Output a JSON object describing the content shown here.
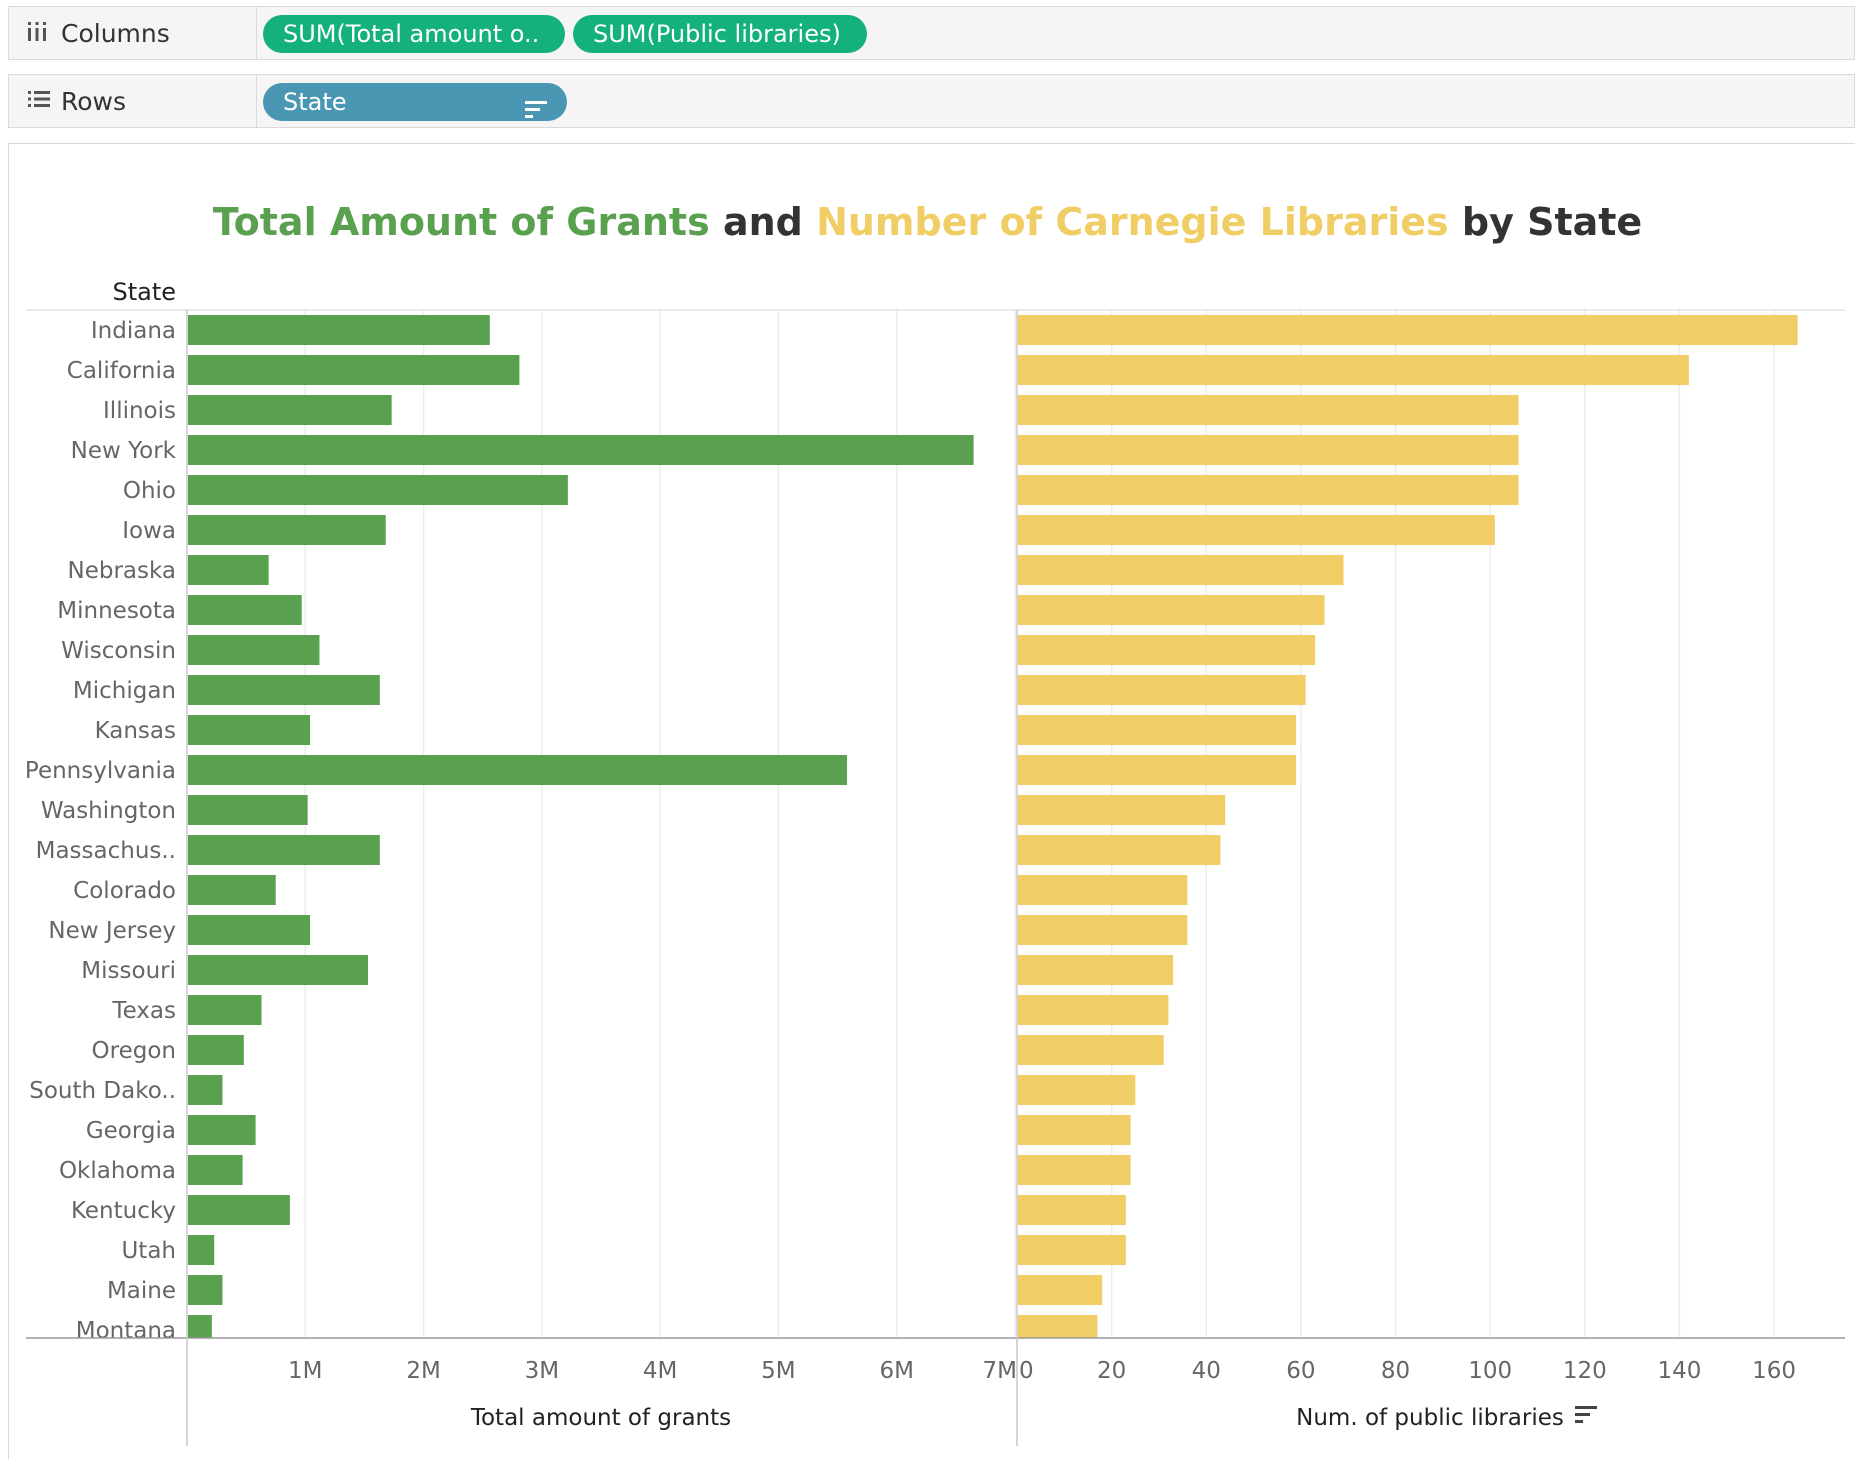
{
  "shelves": {
    "columns": {
      "label": "Columns",
      "icon": "columns-icon",
      "pills": [
        "SUM(Total amount o..",
        "SUM(Public libraries)"
      ]
    },
    "rows": {
      "label": "Rows",
      "icon": "rows-icon",
      "pills": [
        "State"
      ]
    }
  },
  "colors": {
    "grants": "#59a14f",
    "libraries": "#f0ce65",
    "pill_measure": "#14b07e",
    "pill_dimension": "#4a97b4",
    "title_dark": "#333333"
  },
  "title": {
    "part1": "Total Amount of Grants",
    "part2": " and ",
    "part3": "Number of Carnegie Libraries",
    "part4": " by State"
  },
  "chart_data": {
    "type": "bar",
    "orientation": "horizontal",
    "row_header": "State",
    "categories": [
      "Indiana",
      "California",
      "Illinois",
      "New York",
      "Ohio",
      "Iowa",
      "Nebraska",
      "Minnesota",
      "Wisconsin",
      "Michigan",
      "Kansas",
      "Pennsylvania",
      "Washington",
      "Massachus..",
      "Colorado",
      "New Jersey",
      "Missouri",
      "Texas",
      "Oregon",
      "South Dako..",
      "Georgia",
      "Oklahoma",
      "Kentucky",
      "Utah",
      "Maine",
      "Montana"
    ],
    "series": [
      {
        "name": "Total amount of grants",
        "values": [
          2560000,
          2810000,
          1730000,
          6650000,
          3220000,
          1680000,
          690000,
          970000,
          1120000,
          1630000,
          1040000,
          5580000,
          1020000,
          1630000,
          750000,
          1040000,
          1530000,
          630000,
          480000,
          300000,
          580000,
          470000,
          870000,
          230000,
          300000,
          210000
        ],
        "xlim": [
          0,
          7000000
        ],
        "ticks": [
          0,
          1000000,
          2000000,
          3000000,
          4000000,
          5000000,
          6000000,
          7000000
        ],
        "tick_labels": [
          "",
          "1M",
          "2M",
          "3M",
          "4M",
          "5M",
          "6M",
          "7M"
        ],
        "xlabel": "Total amount of grants"
      },
      {
        "name": "Num. of public libraries",
        "values": [
          165,
          142,
          106,
          106,
          106,
          101,
          69,
          65,
          63,
          61,
          59,
          59,
          44,
          43,
          36,
          36,
          33,
          32,
          31,
          25,
          24,
          24,
          23,
          23,
          18,
          17
        ],
        "xlim": [
          0,
          175
        ],
        "ticks": [
          0,
          20,
          40,
          60,
          80,
          100,
          120,
          140,
          160
        ],
        "tick_labels": [
          "0",
          "20",
          "40",
          "60",
          "80",
          "100",
          "120",
          "140",
          "160"
        ],
        "xlabel": "Num. of public libraries",
        "sort_icon": "sort-descending-icon"
      }
    ],
    "legend": "none",
    "grid": true
  }
}
